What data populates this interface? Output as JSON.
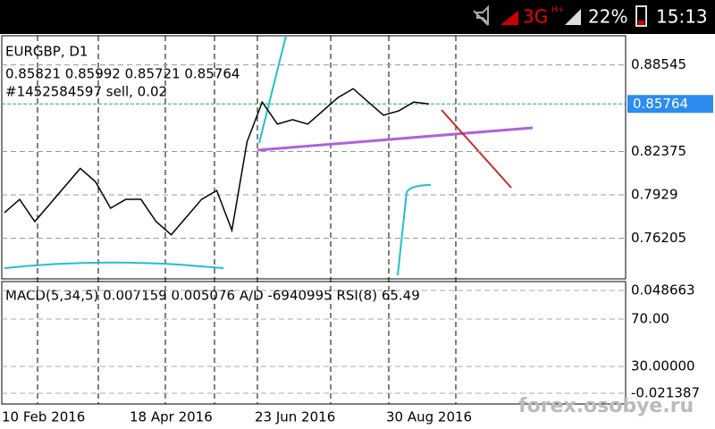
{
  "status_bar": {
    "network": "3G",
    "network_sub": "H+",
    "battery": "22%",
    "time": "15:13"
  },
  "header": {
    "symbol": "EURGBP, D1",
    "ohlc": "0.85821 0.85992 0.85721 0.85764",
    "order": "#1452584597 sell, 0.02"
  },
  "price_chart": {
    "type": "line",
    "color": "#000000",
    "values": [
      0.7802,
      0.7897,
      0.7739,
      0.7865,
      0.7991,
      0.8117,
      0.8023,
      0.7834,
      0.7897,
      0.7897,
      0.7739,
      0.7645,
      0.7771,
      0.7897,
      0.796,
      0.7677,
      0.8307,
      0.859,
      0.8433,
      0.8464,
      0.8433,
      0.8527,
      0.8622,
      0.8685,
      0.859,
      0.8496,
      0.8527,
      0.859,
      0.8576
    ],
    "ylim": [
      0.7331,
      0.9062
    ],
    "yticks": [
      0.88545,
      0.82375,
      0.7929,
      0.76205
    ],
    "current_price": 0.85764
  },
  "indicator": {
    "label": "MACD(5,34,5) 0.007159 0.005076 A/D -6940995 RSI(8) 65.49",
    "yticks": [
      0.048663,
      {
        "value": 70,
        "label": "70.00"
      },
      {
        "value": 30,
        "label": "30.00000"
      },
      -0.021387
    ]
  },
  "dates": [
    "10 Feb 2016",
    "18 Apr 2016",
    "23 Jun 2016",
    "30 Aug 2016"
  ],
  "watermark": "forex.osobye.ru"
}
